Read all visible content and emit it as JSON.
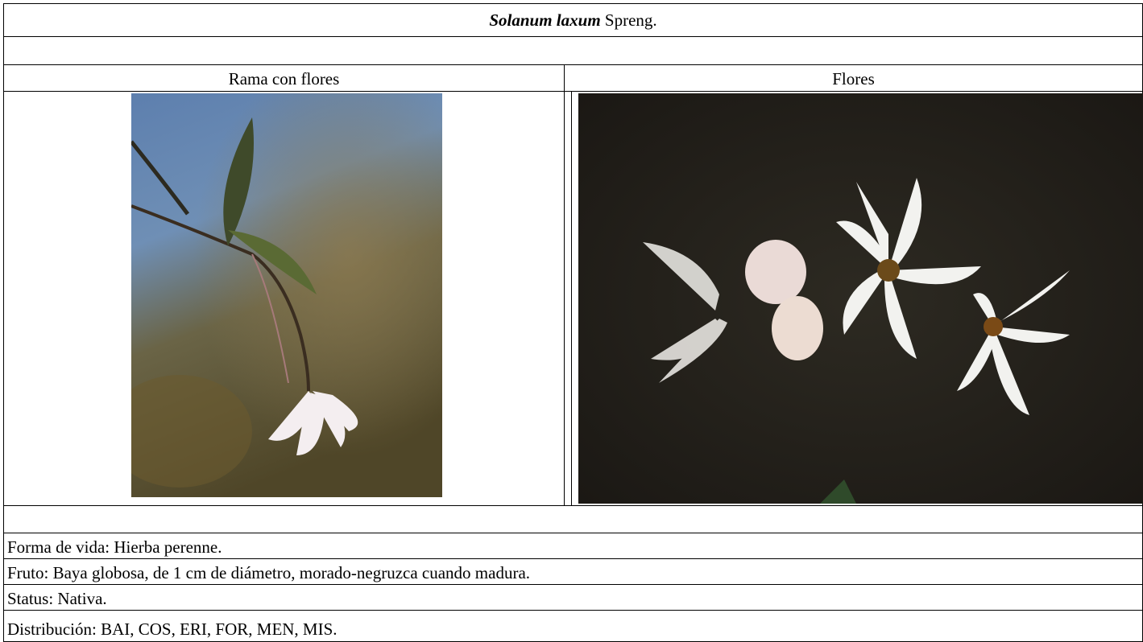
{
  "title": {
    "name": "Solanum laxum",
    "author": "Spreng."
  },
  "columns": [
    "Rama con flores",
    "Flores"
  ],
  "details": [
    "Forma de vida: Hierba perenne.",
    "Fruto: Baya globosa, de 1 cm de diámetro, morado-negruzca cuando madura.",
    "Status: Nativa.",
    "Distribución: BAI, COS, ERI, FOR, MEN, MIS."
  ]
}
